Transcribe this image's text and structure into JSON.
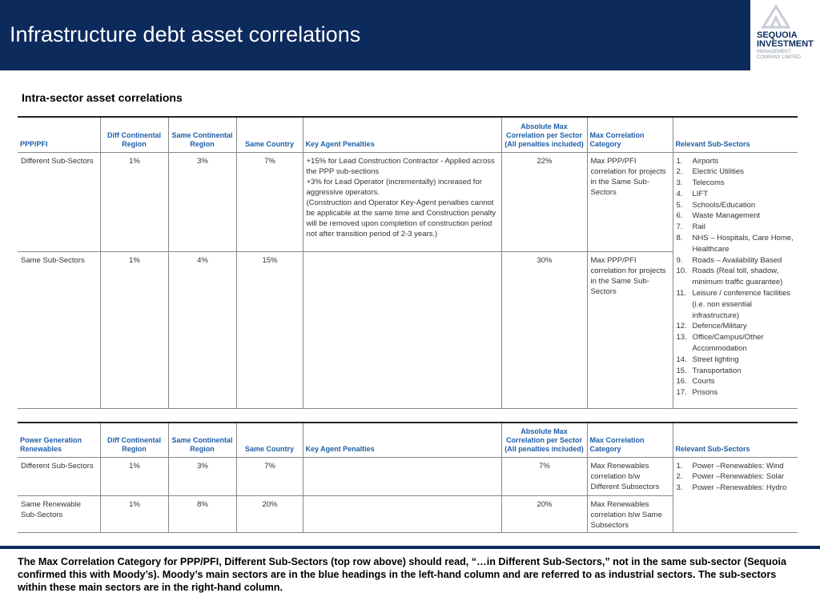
{
  "header": {
    "title": "Infrastructure debt asset correlations",
    "logo": {
      "line1": "SEQUOIA",
      "line2": "INVESTMENT",
      "line3": "MANAGEMENT COMPANY LIMITED"
    }
  },
  "subtitle": "Intra-sector asset correlations",
  "tables": [
    {
      "headers": [
        "PPP/PFI",
        "Diff Continental Region",
        "Same Continental Region",
        "Same Country",
        "Key Agent Penalties",
        "Absolute Max Correlation per Sector (All penalties included)",
        "Max Correlation Category",
        "Relevant Sub-Sectors"
      ],
      "rows": [
        {
          "name": "Different Sub-Sectors",
          "diff_continental": "1%",
          "same_continental": "3%",
          "same_country": "7%",
          "penalties": [
            "+15% for Lead Construction Contractor - Applied across the PPP sub-sections",
            "+3% for Lead Operator (incrementally) increased for aggressive operators.",
            "(Construction and Operator Key-Agent penalties cannot be applicable at the same time and Construction penalty",
            "will be removed upon completion of construction period not after transition period of 2-3 years.)"
          ],
          "abs_max": "22%",
          "category": "Max PPP/PFI correlation for projects in the Same Sub-Sectors"
        },
        {
          "name": "Same Sub-Sectors",
          "diff_continental": "1%",
          "same_continental": "4%",
          "same_country": "15%",
          "abs_max": "30%",
          "category": "Max PPP/PFI correlation for projects in the Same Sub-Sectors"
        }
      ],
      "sub_sectors": [
        {
          "num": "1.",
          "label": "Airports"
        },
        {
          "num": "2.",
          "label": "Electric Utilities"
        },
        {
          "num": "3.",
          "label": "Telecoms"
        },
        {
          "num": "4.",
          "label": "LIFT"
        },
        {
          "num": "5.",
          "label": "Schools/Education"
        },
        {
          "num": "6.",
          "label": "Waste Management"
        },
        {
          "num": "7.",
          "label": "Rail"
        },
        {
          "num": "8.",
          "label": "NHS – Hospitals, Care Home, Healthcare"
        },
        {
          "num": "9.",
          "label": "Roads – Availability Based"
        },
        {
          "num": "10.",
          "label": "Roads (Real toll, shadow, minimum traffic guarantee)"
        },
        {
          "num": "11.",
          "label": "Leisure / conference facilities (i.e. non essential infrastructure)"
        },
        {
          "num": "12.",
          "label": "Defence/Military"
        },
        {
          "num": "13.",
          "label": "Office/Campus/Other Accommodation"
        },
        {
          "num": "14.",
          "label": "Street lighting"
        },
        {
          "num": "15.",
          "label": "Transportation"
        },
        {
          "num": "16.",
          "label": "Courts"
        },
        {
          "num": "17.",
          "label": "Prisons"
        }
      ]
    },
    {
      "headers": [
        "Power Generation Renewables",
        "Diff Continental Region",
        "Same Continental Region",
        "Same Country",
        "Key Agent Penalties",
        "Absolute Max Correlation per Sector (All penalties included)",
        "Max Correlation Category",
        "Relevant Sub-Sectors"
      ],
      "rows": [
        {
          "name": "Different Sub-Sectors",
          "diff_continental": "1%",
          "same_continental": "3%",
          "same_country": "7%",
          "abs_max": "7%",
          "category": "Max Renewables correlation b/w Different Subsectors"
        },
        {
          "name": "Same Renewable Sub-Sectors",
          "diff_continental": "1%",
          "same_continental": "8%",
          "same_country": "20%",
          "abs_max": "20%",
          "category": "Max Renewables correlation b/w Same Subsectors"
        }
      ],
      "sub_sectors": [
        {
          "num": "1.",
          "label": "Power –Renewables: Wind"
        },
        {
          "num": "2.",
          "label": "Power –Renewables: Solar"
        },
        {
          "num": "3.",
          "label": "Power –Renewables: Hydro"
        }
      ]
    }
  ],
  "footnote": "The Max Correlation Category for PPP/PFI, Different Sub-Sectors (top row above) should read, “…in Different Sub-Sectors,” not in the same sub-sector (Sequoia confirmed this with Moody’s). Moody’s main sectors are in the blue headings in the left-hand column and are referred to as industrial sectors. The sub-sectors within these main sectors are in the right-hand column."
}
